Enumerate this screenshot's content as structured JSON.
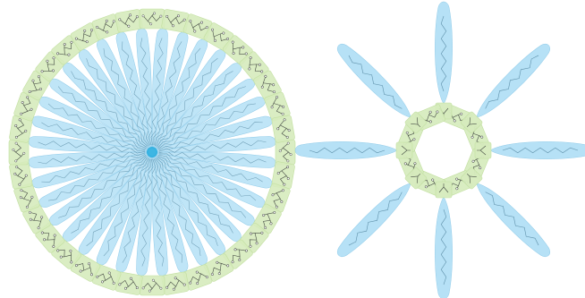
{
  "colors": {
    "background": "#ffffff",
    "tail_fill": "#a9dcf4",
    "tail_stroke": "#8fcbe9",
    "chain_line": "#3a6f8a",
    "core": "#29aee0",
    "headgroup_fill": "#d6ebbd",
    "headgroup_stroke": "#c2dfa0",
    "atom_line": "#444a44"
  },
  "micelle": {
    "description_icon": "spherical-micelle-diagram",
    "tail_count": 36,
    "headgroup_count": 36
  },
  "cyclic_assembly": {
    "description_icon": "cyclic-octamer-diagram",
    "tail_count": 8,
    "headgroup_count": 8
  }
}
